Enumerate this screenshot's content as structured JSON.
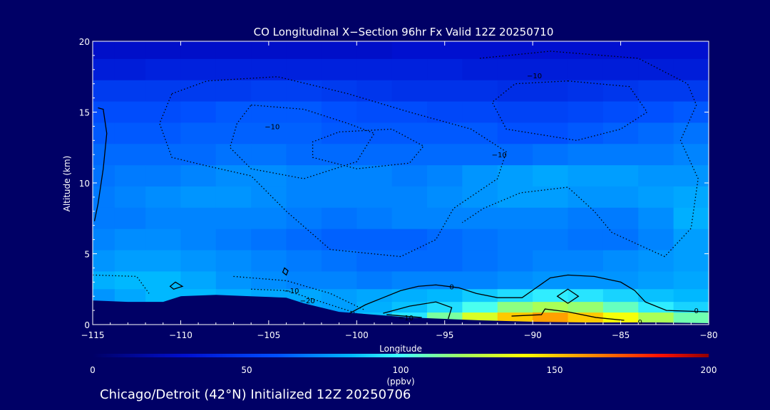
{
  "colors": {
    "background": "#000066",
    "text": "#ffffff",
    "terrain": "#000066",
    "contour": "#000000"
  },
  "chart_data": {
    "type": "heatmap",
    "title": "CO Longitudinal X−Section 96hr  Fx Valid 12Z 20250710",
    "xlabel": "Longitude",
    "ylabel": "Altitude (km)",
    "xlim": [
      -115,
      -80
    ],
    "ylim": [
      0,
      20
    ],
    "xticks": [
      -115,
      -110,
      -105,
      -100,
      -95,
      -90,
      -85,
      -80
    ],
    "xtick_labels": [
      "−115",
      "−110",
      "−105",
      "−100",
      "−95",
      "−90",
      "−85",
      "−80"
    ],
    "yticks": [
      0,
      5,
      10,
      15,
      20
    ],
    "ytick_labels": [
      "0",
      "5",
      "10",
      "15",
      "20"
    ],
    "colorbar": {
      "label": "(ppbv)",
      "range": [
        0,
        200
      ],
      "ticks": [
        0,
        50,
        100,
        150,
        200
      ],
      "tick_labels": [
        "0",
        "50",
        "100",
        "150",
        "200"
      ]
    },
    "grid": false,
    "rows_altitude_km": [
      19.5,
      18,
      16.5,
      15,
      13.5,
      12,
      10.5,
      9,
      7.5,
      6,
      4.5,
      3,
      2,
      1.2,
      0.5
    ],
    "cols_longitude": [
      -114.5,
      -113,
      -111,
      -109,
      -107,
      -105,
      -103,
      -101,
      -99,
      -97,
      -95,
      -93,
      -91,
      -89,
      -87,
      -85,
      -83,
      -81
    ],
    "values_ppbv": [
      [
        28,
        28,
        28,
        28,
        28,
        28,
        28,
        28,
        28,
        30,
        30,
        30,
        30,
        30,
        30,
        30,
        30,
        30
      ],
      [
        36,
        36,
        38,
        38,
        38,
        38,
        38,
        38,
        38,
        38,
        38,
        36,
        36,
        36,
        36,
        36,
        36,
        36
      ],
      [
        50,
        50,
        50,
        50,
        50,
        52,
        52,
        50,
        48,
        46,
        46,
        46,
        44,
        44,
        46,
        48,
        50,
        50
      ],
      [
        58,
        58,
        58,
        60,
        62,
        62,
        62,
        60,
        58,
        58,
        56,
        56,
        54,
        54,
        56,
        58,
        60,
        62
      ],
      [
        62,
        62,
        62,
        64,
        64,
        64,
        64,
        62,
        62,
        62,
        62,
        62,
        60,
        60,
        62,
        64,
        66,
        68
      ],
      [
        66,
        66,
        66,
        66,
        68,
        68,
        66,
        66,
        66,
        66,
        66,
        66,
        66,
        68,
        70,
        70,
        70,
        72
      ],
      [
        68,
        70,
        70,
        72,
        74,
        74,
        72,
        72,
        72,
        70,
        72,
        76,
        78,
        80,
        78,
        78,
        76,
        76
      ],
      [
        70,
        72,
        74,
        76,
        76,
        74,
        72,
        72,
        72,
        72,
        74,
        76,
        78,
        78,
        76,
        76,
        78,
        80
      ],
      [
        70,
        70,
        72,
        72,
        72,
        72,
        70,
        68,
        70,
        72,
        72,
        72,
        72,
        72,
        70,
        70,
        74,
        82
      ],
      [
        72,
        74,
        74,
        72,
        70,
        68,
        66,
        64,
        64,
        64,
        66,
        68,
        70,
        70,
        68,
        68,
        72,
        78
      ],
      [
        76,
        78,
        78,
        76,
        74,
        72,
        70,
        68,
        66,
        66,
        66,
        68,
        70,
        72,
        72,
        74,
        76,
        78
      ],
      [
        82,
        84,
        84,
        80,
        76,
        74,
        72,
        72,
        70,
        72,
        72,
        72,
        74,
        76,
        76,
        76,
        78,
        80
      ],
      [
        76,
        80,
        84,
        84,
        82,
        80,
        80,
        78,
        80,
        82,
        84,
        88,
        92,
        96,
        94,
        90,
        86,
        84
      ],
      [
        76,
        80,
        84,
        84,
        82,
        80,
        80,
        78,
        82,
        86,
        92,
        102,
        116,
        122,
        118,
        108,
        96,
        90
      ],
      [
        76,
        80,
        84,
        84,
        82,
        80,
        80,
        80,
        86,
        94,
        112,
        132,
        150,
        158,
        150,
        138,
        122,
        110
      ]
    ],
    "terrain_km": [
      [
        -115,
        1.7
      ],
      [
        -113,
        1.6
      ],
      [
        -111,
        1.6
      ],
      [
        -110,
        2.0
      ],
      [
        -108,
        2.1
      ],
      [
        -106,
        2.0
      ],
      [
        -104,
        1.9
      ],
      [
        -103,
        1.5
      ],
      [
        -101,
        0.9
      ],
      [
        -99,
        0.7
      ],
      [
        -97,
        0.5
      ],
      [
        -95,
        0.4
      ],
      [
        -93,
        0.3
      ],
      [
        -90,
        0.2
      ],
      [
        -87,
        0.15
      ],
      [
        -83,
        0.15
      ],
      [
        -80,
        0.1
      ]
    ],
    "contours": [
      {
        "level": "0",
        "style": "solid",
        "points": [
          [
            -100.4,
            0.8
          ],
          [
            -99.5,
            1.4
          ],
          [
            -98.5,
            1.9
          ],
          [
            -97.5,
            2.4
          ],
          [
            -96.5,
            2.7
          ],
          [
            -95.5,
            2.8
          ],
          [
            -94.2,
            2.6
          ],
          [
            -93.2,
            2.2
          ],
          [
            -92.0,
            1.9
          ],
          [
            -90.6,
            1.9
          ],
          [
            -89.8,
            2.6
          ],
          [
            -89.0,
            3.3
          ],
          [
            -88.0,
            3.5
          ],
          [
            -86.5,
            3.4
          ],
          [
            -85.0,
            3.0
          ],
          [
            -84.2,
            2.4
          ],
          [
            -83.6,
            1.6
          ],
          [
            -82.4,
            1.0
          ],
          [
            -80.0,
            0.9
          ]
        ]
      },
      {
        "level": "0",
        "style": "solid",
        "points": [
          [
            -98.5,
            0.8
          ],
          [
            -97.0,
            1.3
          ],
          [
            -95.5,
            1.6
          ],
          [
            -94.6,
            1.2
          ],
          [
            -94.8,
            0.4
          ]
        ]
      },
      {
        "level": "0",
        "style": "solid",
        "points": [
          [
            -91.2,
            0.6
          ],
          [
            -89.5,
            0.7
          ],
          [
            -89.3,
            1.1
          ],
          [
            -88.0,
            0.9
          ],
          [
            -86.4,
            0.5
          ],
          [
            -84.8,
            0.3
          ]
        ]
      },
      {
        "level": "-10",
        "style": "solid",
        "points": [
          [
            -98.3,
            0.7
          ],
          [
            -97.3,
            0.6
          ],
          [
            -96.3,
            0.5
          ]
        ]
      },
      {
        "level": "",
        "style": "solid-closed",
        "points": [
          [
            -88.6,
            2.0
          ],
          [
            -88.0,
            2.5
          ],
          [
            -87.4,
            2.0
          ],
          [
            -88.0,
            1.5
          ]
        ]
      },
      {
        "level": "",
        "style": "solid-closed",
        "points": [
          [
            -104.1,
            4.0
          ],
          [
            -103.9,
            3.8
          ],
          [
            -104.0,
            3.5
          ],
          [
            -104.2,
            3.7
          ]
        ]
      },
      {
        "level": "",
        "style": "solid-closed",
        "points": [
          [
            -110.3,
            3.0
          ],
          [
            -109.9,
            2.7
          ],
          [
            -110.4,
            2.5
          ],
          [
            -110.6,
            2.7
          ]
        ]
      },
      {
        "level": "",
        "style": "solid",
        "points": [
          [
            -114.7,
            15.3
          ],
          [
            -114.4,
            15.2
          ],
          [
            -114.2,
            13.5
          ],
          [
            -114.4,
            11.0
          ],
          [
            -114.7,
            8.5
          ],
          [
            -114.9,
            7.3
          ]
        ]
      },
      {
        "level": "-10",
        "style": "dotted",
        "points": [
          [
            -110.5,
            16.3
          ],
          [
            -108.5,
            17.2
          ],
          [
            -104.5,
            17.5
          ],
          [
            -100.5,
            16.3
          ],
          [
            -97.0,
            15.0
          ],
          [
            -93.5,
            13.8
          ],
          [
            -91.5,
            12.2
          ],
          [
            -92.0,
            10.3
          ],
          [
            -94.5,
            8.2
          ],
          [
            -95.5,
            6.0
          ],
          [
            -97.5,
            4.8
          ],
          [
            -101.5,
            5.3
          ],
          [
            -104.0,
            8.0
          ],
          [
            -106.0,
            10.5
          ],
          [
            -108.5,
            11.2
          ],
          [
            -110.5,
            11.8
          ],
          [
            -111.2,
            14.2
          ],
          [
            -110.5,
            16.3
          ]
        ]
      },
      {
        "level": "-10",
        "style": "dotted",
        "points": [
          [
            -106.0,
            15.5
          ],
          [
            -103.0,
            15.2
          ],
          [
            -100.5,
            14.2
          ],
          [
            -99.0,
            13.5
          ],
          [
            -100.0,
            11.5
          ],
          [
            -103.0,
            10.3
          ],
          [
            -106.0,
            11.0
          ],
          [
            -107.2,
            12.5
          ],
          [
            -106.8,
            14.2
          ],
          [
            -106.0,
            15.5
          ]
        ]
      },
      {
        "level": "",
        "style": "dotted",
        "points": [
          [
            -101.0,
            13.6
          ],
          [
            -98.0,
            13.8
          ],
          [
            -96.2,
            12.6
          ],
          [
            -97.0,
            11.4
          ],
          [
            -100.0,
            11.0
          ],
          [
            -102.5,
            11.8
          ],
          [
            -102.5,
            12.9
          ],
          [
            -101.0,
            13.6
          ]
        ]
      },
      {
        "level": "-10",
        "style": "dotted",
        "points": [
          [
            -88.0,
            17.2
          ],
          [
            -84.5,
            16.8
          ],
          [
            -83.5,
            15.0
          ],
          [
            -85.0,
            13.8
          ],
          [
            -87.5,
            13.0
          ],
          [
            -91.5,
            13.8
          ],
          [
            -92.3,
            15.7
          ],
          [
            -91.0,
            17.0
          ],
          [
            -88.0,
            17.2
          ]
        ]
      },
      {
        "level": "",
        "style": "dotted",
        "points": [
          [
            -93.0,
            18.8
          ],
          [
            -89.0,
            19.3
          ],
          [
            -84.0,
            18.8
          ],
          [
            -81.2,
            17.0
          ],
          [
            -80.7,
            15.5
          ],
          [
            -81.6,
            13.0
          ],
          [
            -80.6,
            10.3
          ],
          [
            -81.0,
            6.8
          ],
          [
            -82.5,
            4.8
          ],
          [
            -85.5,
            6.5
          ],
          [
            -86.5,
            8.0
          ],
          [
            -88.0,
            9.7
          ],
          [
            -90.7,
            9.3
          ],
          [
            -92.8,
            8.2
          ],
          [
            -94.0,
            7.2
          ]
        ]
      },
      {
        "level": "-10",
        "style": "dotted",
        "points": [
          [
            -115.0,
            3.5
          ],
          [
            -112.5,
            3.4
          ],
          [
            -111.8,
            2.2
          ]
        ]
      },
      {
        "level": "-10",
        "style": "dotted",
        "points": [
          [
            -107.0,
            3.4
          ],
          [
            -104.0,
            3.1
          ],
          [
            -101.5,
            2.2
          ],
          [
            -99.5,
            1.0
          ]
        ]
      },
      {
        "level": "-20",
        "style": "dotted",
        "points": [
          [
            -106.0,
            2.5
          ],
          [
            -104.0,
            2.4
          ],
          [
            -102.0,
            1.6
          ],
          [
            -100.0,
            0.8
          ]
        ]
      }
    ],
    "contour_labels": [
      {
        "text": "−10",
        "lon": -104.8,
        "alt": 14.0
      },
      {
        "text": "−10",
        "lon": -89.9,
        "alt": 17.6
      },
      {
        "text": "−10",
        "lon": -91.9,
        "alt": 12.0
      },
      {
        "text": "−10",
        "lon": -103.7,
        "alt": 2.4
      },
      {
        "text": "−20",
        "lon": -102.8,
        "alt": 1.7
      },
      {
        "text": "0",
        "lon": -94.6,
        "alt": 2.7
      },
      {
        "text": "−10",
        "lon": -97.2,
        "alt": 0.5
      },
      {
        "text": "0",
        "lon": -80.7,
        "alt": 1.0
      },
      {
        "text": "0",
        "lon": -83.9,
        "alt": 0.2
      }
    ]
  },
  "caption": "Chicago/Detroit (42°N) Initialized 12Z 20250706"
}
